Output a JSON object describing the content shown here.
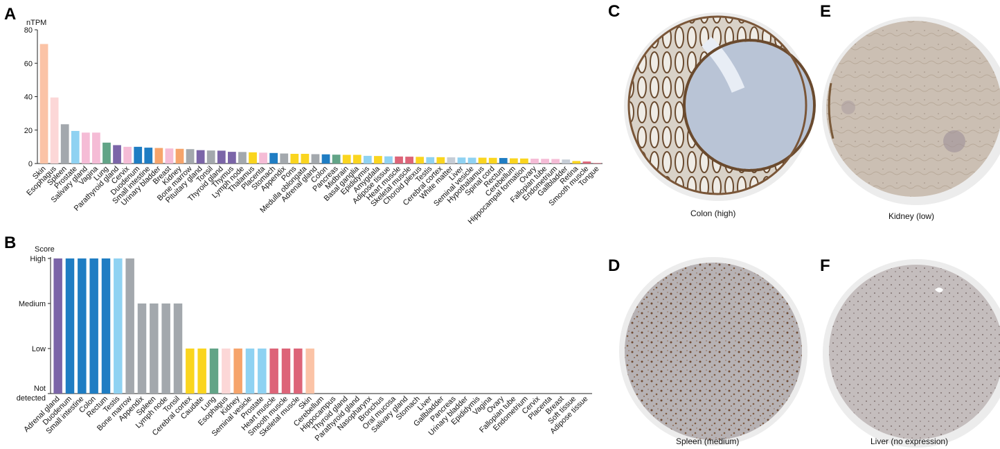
{
  "panels": {
    "a": "A",
    "b": "B",
    "c": "C",
    "d": "D",
    "e": "E",
    "f": "F"
  },
  "colors": {
    "skin": "#fbc3a6",
    "esophagus": "#fcd7d7",
    "gray": "#a3a8ad",
    "lightblue": "#8fd2f2",
    "pink": "#f5bcd6",
    "green": "#62a487",
    "purple": "#7b65a8",
    "blue": "#1f7dc3",
    "orange": "#f6a46b",
    "yellow": "#fad51f",
    "red": "#dd6478",
    "lightgray": "#c6cdd6"
  },
  "chart_data": [
    {
      "type": "bar",
      "ylabel": "nTPM",
      "ylim": [
        0,
        80
      ],
      "yticks": [
        0,
        20,
        40,
        60,
        80
      ],
      "categories": [
        "Skin",
        "Esophagus",
        "Spleen",
        "Prostate",
        "Salivary gland",
        "Vagina",
        "Lung",
        "Parathyroid gland",
        "Cervix",
        "Duodenum",
        "Small intestine",
        "Urinary bladder",
        "Breast",
        "Kidney",
        "Bone marrow",
        "Pituitary gland",
        "Tonsil",
        "Thyroid gland",
        "Thymus",
        "Lymph node",
        "Thalamus",
        "Placenta",
        "Stomach",
        "Appendix",
        "Pons",
        "Medulla oblongata",
        "Adrenal gland",
        "Colon",
        "Pancreas",
        "Midbrain",
        "Basal ganglia",
        "Epididymis",
        "Amygdala",
        "Adipose tissue",
        "Heart muscle",
        "Skeletal muscle",
        "Choroid plexus",
        "Testis",
        "Cerebral cortex",
        "White matter",
        "Liver",
        "Seminal vesicle",
        "Hypothalamus",
        "Spinal cord",
        "Rectum",
        "Cerebellum",
        "Hippocampal formation",
        "Ovary",
        "Fallopian tube",
        "Endometrium",
        "Gallbladder",
        "Retina",
        "Smooth muscle",
        "Tongue"
      ],
      "values": [
        71.5,
        39.5,
        23.5,
        19.5,
        18.5,
        18.5,
        12.5,
        11,
        10,
        10,
        9.5,
        9.3,
        9,
        8.8,
        8.6,
        8,
        7.8,
        7.7,
        7,
        6.9,
        6.7,
        6.5,
        6.3,
        6,
        5.8,
        5.8,
        5.6,
        5.5,
        5.3,
        5.2,
        5.2,
        4.6,
        4.5,
        4.3,
        4.2,
        4.1,
        4,
        3.8,
        3.8,
        3.7,
        3.6,
        3.5,
        3.5,
        3.4,
        3.3,
        3.1,
        3,
        2.9,
        2.8,
        2.7,
        2.4,
        1.5,
        1.2,
        0.3
      ],
      "colors": [
        "skin",
        "esophagus",
        "gray",
        "lightblue",
        "pink",
        "pink",
        "green",
        "purple",
        "pink",
        "blue",
        "blue",
        "orange",
        "pink",
        "orange",
        "gray",
        "purple",
        "gray",
        "purple",
        "purple",
        "gray",
        "yellow",
        "pink",
        "blue",
        "gray",
        "yellow",
        "yellow",
        "gray",
        "blue",
        "green",
        "yellow",
        "yellow",
        "lightblue",
        "yellow",
        "lightblue",
        "red",
        "red",
        "yellow",
        "lightblue",
        "yellow",
        "lightgray",
        "lightblue",
        "lightblue",
        "yellow",
        "yellow",
        "blue",
        "yellow",
        "yellow",
        "pink",
        "pink",
        "pink",
        "lightgray",
        "yellow",
        "red",
        "red"
      ]
    },
    {
      "type": "bar",
      "ylabel": "Score",
      "levels": [
        "Not\ndetected",
        "Low",
        "Medium",
        "High"
      ],
      "level_labels": [
        "Not",
        "detected",
        "Low",
        "Medium",
        "High"
      ],
      "categories": [
        "Adrenal gland",
        "Duodenum",
        "Small intestine",
        "Colon",
        "Rectum",
        "Testis",
        "Bone marrow",
        "Appendix",
        "Spleen",
        "Lymph node",
        "Tonsil",
        "Cerebral cortex",
        "Caudate",
        "Lung",
        "Esophagus",
        "Kidney",
        "Seminal vesicle",
        "Prostate",
        "Heart muscle",
        "Smooth muscle",
        "Skeletal muscle",
        "Skin",
        "Cerebellum",
        "Hippocampus",
        "Thyroid gland",
        "Parathyroid gland",
        "Nasopharynx",
        "Bronchus",
        "Oral mucosa",
        "Salivary gland",
        "Stomach",
        "Liver",
        "Gallbladder",
        "Pancreas",
        "Urinary bladder",
        "Epididymis",
        "Vagina",
        "Ovary",
        "Fallopian tube",
        "Endometrium",
        "Cervix",
        "Placenta",
        "Breast",
        "Soft tissue",
        "Adipose tissue"
      ],
      "values": [
        3,
        3,
        3,
        3,
        3,
        3,
        3,
        2,
        2,
        2,
        2,
        1,
        1,
        1,
        1,
        1,
        1,
        1,
        1,
        1,
        1,
        1,
        0,
        0,
        0,
        0,
        0,
        0,
        0,
        0,
        0,
        0,
        0,
        0,
        0,
        0,
        0,
        0,
        0,
        0,
        0,
        0,
        0,
        0,
        0
      ],
      "colors": [
        "purple",
        "blue",
        "blue",
        "blue",
        "blue",
        "lightblue",
        "gray",
        "gray",
        "gray",
        "gray",
        "gray",
        "yellow",
        "yellow",
        "green",
        "esophagus",
        "orange",
        "lightblue",
        "lightblue",
        "red",
        "red",
        "red",
        "skin",
        "",
        "",
        "",
        "",
        "",
        "",
        "",
        "",
        "",
        "",
        "",
        "",
        "",
        "",
        "",
        "",
        "",
        "",
        "",
        "",
        "",
        "",
        ""
      ]
    }
  ],
  "images": {
    "c_caption": "Colon (high)",
    "d_caption": "Spleen (medium)",
    "e_caption": "Kidney (low)",
    "f_caption": "Liver (no expression)"
  }
}
